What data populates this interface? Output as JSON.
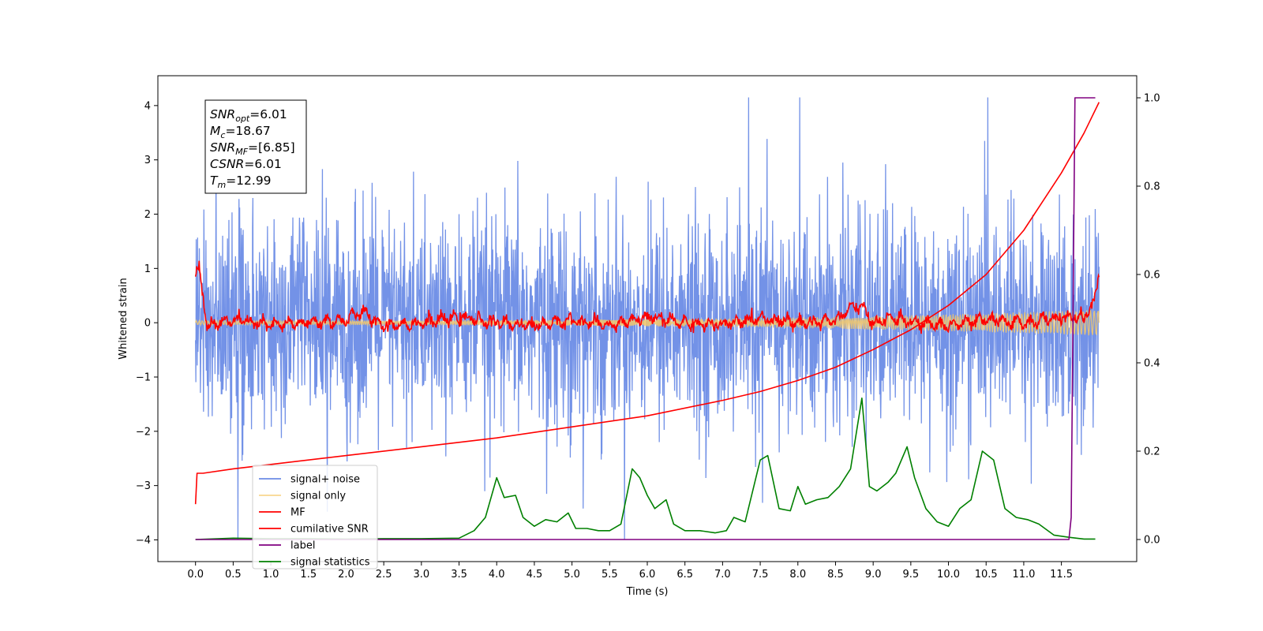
{
  "chart_data": {
    "type": "line",
    "title": "",
    "xlabel": "Time (s)",
    "ylabel": "Whitened strain",
    "xlim": [
      -0.5,
      12.5
    ],
    "ylim_left": [
      -4.4,
      4.55
    ],
    "ylim_right": [
      -0.05,
      1.05
    ],
    "x_ticks": [
      0.0,
      0.5,
      1.0,
      1.5,
      2.0,
      2.5,
      3.0,
      3.5,
      4.0,
      4.5,
      5.0,
      5.5,
      6.0,
      6.5,
      7.0,
      7.5,
      8.0,
      8.5,
      9.0,
      9.5,
      10.0,
      10.5,
      11.0,
      11.5
    ],
    "x_tick_labels": [
      "0.0",
      "0.5",
      "1.0",
      "1.5",
      "2.0",
      "2.5",
      "3.0",
      "3.5",
      "4.0",
      "4.5",
      "5.0",
      "5.5",
      "6.0",
      "6.5",
      "7.0",
      "7.5",
      "8.0",
      "8.5",
      "9.0",
      "9.5",
      "10.0",
      "10.5",
      "11.0",
      "11.5"
    ],
    "y_left_ticks": [
      -4,
      -3,
      -2,
      -1,
      0,
      1,
      2,
      3,
      4
    ],
    "y_left_tick_labels": [
      "−4",
      "−3",
      "−2",
      "−1",
      "0",
      "1",
      "2",
      "3",
      "4"
    ],
    "y_right_ticks": [
      0.0,
      0.2,
      0.4,
      0.6,
      0.8,
      1.0
    ],
    "y_right_tick_labels": [
      "0.0",
      "0.2",
      "0.4",
      "0.6",
      "0.8",
      "1.0"
    ],
    "legend_position": "lower-left",
    "grid": false,
    "info_box": [
      {
        "base": "SNR",
        "sub": "opt",
        "value": "=6.01"
      },
      {
        "base": "M",
        "sub": "c",
        "value": "=18.67"
      },
      {
        "base": "SNR",
        "sub": "MF",
        "value": "=[6.85]"
      },
      {
        "base": "CSNR",
        "sub": "",
        "value": "=6.01"
      },
      {
        "base": "T",
        "sub": "m",
        "value": "=12.99"
      }
    ],
    "series": [
      {
        "name": "signal+ noise",
        "axis": "left",
        "color": "#6c8ce6",
        "kind": "noise",
        "x_range": [
          0.0,
          12.0
        ],
        "spread": 0.95
      },
      {
        "name": "signal only",
        "axis": "left",
        "color": "#f5c96a",
        "kind": "chirp",
        "x_range": [
          0.0,
          12.0
        ]
      },
      {
        "name": "MF",
        "axis": "left",
        "color": "#ff0000",
        "kind": "mf",
        "x": [
          0.0,
          0.05,
          0.1,
          0.15,
          0.3,
          0.6,
          1.0,
          1.5,
          2.0,
          2.2,
          2.5,
          3.0,
          3.5,
          4.0,
          4.5,
          5.0,
          5.5,
          6.0,
          6.5,
          7.0,
          7.5,
          8.0,
          8.5,
          8.8,
          9.0,
          9.3,
          9.5,
          10.0,
          10.5,
          11.0,
          11.5,
          11.8,
          11.95,
          12.0
        ],
        "y": [
          0.9,
          0.95,
          0.5,
          -0.05,
          0.0,
          0.05,
          -0.05,
          0.0,
          0.05,
          0.2,
          -0.05,
          0.0,
          0.1,
          0.0,
          -0.05,
          0.05,
          -0.05,
          0.1,
          0.0,
          -0.05,
          0.1,
          0.0,
          0.05,
          0.35,
          0.0,
          0.1,
          0.0,
          -0.05,
          0.05,
          0.0,
          0.1,
          0.1,
          0.4,
          1.0
        ]
      },
      {
        "name": "cumilative SNR",
        "axis": "right",
        "color": "#ff0000",
        "kind": "curve",
        "x": [
          0.0,
          0.02,
          0.1,
          0.5,
          1.0,
          2.0,
          3.0,
          4.0,
          5.0,
          6.0,
          7.0,
          7.5,
          8.0,
          8.5,
          9.0,
          9.5,
          10.0,
          10.5,
          11.0,
          11.5,
          11.8,
          12.0
        ],
        "y": [
          0.08,
          0.15,
          0.15,
          0.16,
          0.17,
          0.19,
          0.21,
          0.23,
          0.255,
          0.28,
          0.315,
          0.335,
          0.36,
          0.39,
          0.43,
          0.475,
          0.53,
          0.6,
          0.7,
          0.83,
          0.92,
          0.99
        ]
      },
      {
        "name": "label",
        "axis": "right",
        "color": "#800080",
        "kind": "curve",
        "x": [
          0.0,
          11.6,
          11.63,
          11.68,
          11.95
        ],
        "y": [
          0.0,
          0.0,
          0.05,
          1.0,
          1.0
        ]
      },
      {
        "name": "signal statistics",
        "axis": "right",
        "color": "#008000",
        "kind": "curve",
        "x": [
          0.0,
          0.5,
          1.0,
          1.5,
          2.0,
          2.5,
          3.0,
          3.5,
          3.7,
          3.85,
          4.0,
          4.1,
          4.25,
          4.35,
          4.5,
          4.65,
          4.8,
          4.95,
          5.05,
          5.2,
          5.35,
          5.5,
          5.65,
          5.8,
          5.9,
          6.0,
          6.1,
          6.25,
          6.35,
          6.5,
          6.7,
          6.9,
          7.05,
          7.15,
          7.3,
          7.5,
          7.6,
          7.75,
          7.9,
          8.0,
          8.1,
          8.25,
          8.4,
          8.55,
          8.7,
          8.85,
          8.95,
          9.05,
          9.2,
          9.3,
          9.45,
          9.55,
          9.7,
          9.85,
          10.0,
          10.15,
          10.3,
          10.45,
          10.6,
          10.75,
          10.9,
          11.05,
          11.2,
          11.4,
          11.6,
          11.8,
          11.95
        ],
        "y": [
          0.0,
          0.003,
          0.002,
          0.002,
          0.001,
          0.002,
          0.002,
          0.003,
          0.02,
          0.05,
          0.14,
          0.095,
          0.1,
          0.05,
          0.03,
          0.045,
          0.04,
          0.06,
          0.025,
          0.025,
          0.02,
          0.02,
          0.035,
          0.16,
          0.14,
          0.1,
          0.07,
          0.09,
          0.035,
          0.02,
          0.02,
          0.015,
          0.02,
          0.05,
          0.04,
          0.18,
          0.19,
          0.07,
          0.065,
          0.12,
          0.08,
          0.09,
          0.095,
          0.12,
          0.16,
          0.32,
          0.12,
          0.11,
          0.13,
          0.15,
          0.21,
          0.14,
          0.07,
          0.04,
          0.03,
          0.07,
          0.09,
          0.2,
          0.18,
          0.07,
          0.05,
          0.045,
          0.035,
          0.01,
          0.005,
          0.001,
          0.001
        ]
      }
    ]
  }
}
